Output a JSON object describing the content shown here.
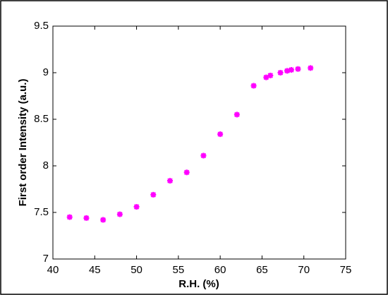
{
  "chart_data": {
    "type": "scatter",
    "x_label": "R.H. (%)",
    "y_label": "First order Intensity (a.u.)",
    "series": [
      {
        "color": "#ff00ff",
        "x": [
          42,
          44,
          46,
          48,
          50,
          52,
          54,
          56,
          58,
          60,
          62,
          64,
          65.5,
          66,
          67.2,
          68,
          68.5,
          69.3,
          70.8
        ],
        "values": [
          7.45,
          7.44,
          7.42,
          7.48,
          7.56,
          7.69,
          7.84,
          7.93,
          8.11,
          8.34,
          8.55,
          8.86,
          8.95,
          8.97,
          9.0,
          9.02,
          9.03,
          9.04,
          9.05
        ]
      }
    ],
    "xlim": [
      40,
      75
    ],
    "xticks": [
      40,
      45,
      50,
      55,
      60,
      65,
      70,
      75
    ],
    "ylim": [
      7,
      9.5
    ],
    "yticks": [
      7,
      7.5,
      8,
      8.5,
      9,
      9.5
    ]
  }
}
